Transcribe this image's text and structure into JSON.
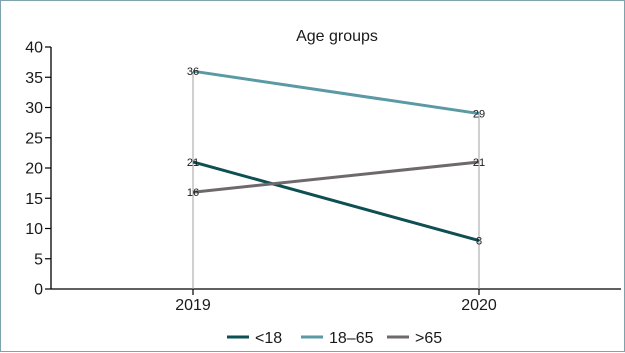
{
  "chart_data": {
    "type": "line",
    "title": "Age groups",
    "xlabel": "",
    "ylabel": "",
    "categories": [
      "2019",
      "2020"
    ],
    "ylim": [
      0,
      40
    ],
    "yticks": [
      0,
      5,
      10,
      15,
      20,
      25,
      30,
      35,
      40
    ],
    "series": [
      {
        "name": "<18",
        "values": [
          21,
          8
        ],
        "color": "#0d4f52"
      },
      {
        "name": "18–65",
        "values": [
          36,
          29
        ],
        "color": "#5b9aa5"
      },
      {
        "name": ">65",
        "values": [
          16,
          21
        ],
        "color": "#6e6a6b"
      }
    ],
    "data_labels": true,
    "drop_lines": true,
    "grid": false,
    "legend_position": "bottom"
  }
}
